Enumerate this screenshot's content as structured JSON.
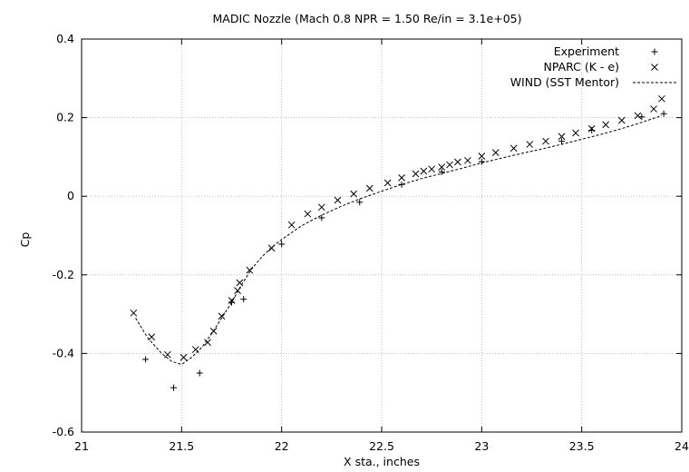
{
  "chart_data": {
    "type": "scatter",
    "title": "MADIC Nozzle (Mach 0.8   NPR = 1.50   Re/in = 3.1e+05)",
    "xlabel": "X sta., inches",
    "ylabel": "Cp",
    "xlim": [
      21,
      24
    ],
    "ylim": [
      -0.6,
      0.4
    ],
    "x_ticks": [
      21,
      21.5,
      22,
      22.5,
      23,
      23.5,
      24
    ],
    "y_ticks": [
      -0.6,
      -0.4,
      -0.2,
      0,
      0.2,
      0.4
    ],
    "x_tick_labels": [
      "21",
      "21.5",
      "22",
      "22.5",
      "23",
      "23.5",
      "24"
    ],
    "y_tick_labels": [
      "-0.6",
      "-0.4",
      "-0.2",
      "0",
      "0.2",
      "0.4"
    ],
    "grid": true,
    "legend_position": "top-right",
    "series": [
      {
        "name": "Experiment",
        "marker": "plus",
        "points": [
          [
            21.32,
            -0.415
          ],
          [
            21.46,
            -0.487
          ],
          [
            21.59,
            -0.45
          ],
          [
            21.75,
            -0.27
          ],
          [
            21.81,
            -0.262
          ],
          [
            22.0,
            -0.122
          ],
          [
            22.2,
            -0.055
          ],
          [
            22.39,
            -0.015
          ],
          [
            22.6,
            0.03
          ],
          [
            22.8,
            0.062
          ],
          [
            23.0,
            0.088
          ],
          [
            23.4,
            0.14
          ],
          [
            23.55,
            0.168
          ],
          [
            23.8,
            0.202
          ],
          [
            23.91,
            0.21
          ]
        ]
      },
      {
        "name": "NPARC (K - e)",
        "marker": "cross",
        "points": [
          [
            21.26,
            -0.297
          ],
          [
            21.35,
            -0.358
          ],
          [
            21.43,
            -0.403
          ],
          [
            21.51,
            -0.41
          ],
          [
            21.57,
            -0.39
          ],
          [
            21.63,
            -0.372
          ],
          [
            21.66,
            -0.343
          ],
          [
            21.7,
            -0.305
          ],
          [
            21.75,
            -0.265
          ],
          [
            21.78,
            -0.24
          ],
          [
            21.79,
            -0.22
          ],
          [
            21.84,
            -0.188
          ],
          [
            21.95,
            -0.132
          ],
          [
            22.05,
            -0.073
          ],
          [
            22.13,
            -0.045
          ],
          [
            22.2,
            -0.028
          ],
          [
            22.28,
            -0.01
          ],
          [
            22.36,
            0.006
          ],
          [
            22.44,
            0.02
          ],
          [
            22.53,
            0.034
          ],
          [
            22.6,
            0.047
          ],
          [
            22.67,
            0.057
          ],
          [
            22.71,
            0.064
          ],
          [
            22.75,
            0.069
          ],
          [
            22.8,
            0.074
          ],
          [
            22.84,
            0.08
          ],
          [
            22.88,
            0.087
          ],
          [
            22.93,
            0.091
          ],
          [
            23.0,
            0.102
          ],
          [
            23.07,
            0.111
          ],
          [
            23.16,
            0.122
          ],
          [
            23.24,
            0.132
          ],
          [
            23.32,
            0.14
          ],
          [
            23.4,
            0.152
          ],
          [
            23.47,
            0.161
          ],
          [
            23.55,
            0.172
          ],
          [
            23.62,
            0.182
          ],
          [
            23.7,
            0.193
          ],
          [
            23.78,
            0.205
          ],
          [
            23.86,
            0.222
          ],
          [
            23.9,
            0.248
          ]
        ]
      },
      {
        "name": "WIND (SST Mentor)",
        "marker": "line",
        "points": [
          [
            21.27,
            -0.31
          ],
          [
            21.33,
            -0.36
          ],
          [
            21.4,
            -0.4
          ],
          [
            21.45,
            -0.42
          ],
          [
            21.5,
            -0.428
          ],
          [
            21.55,
            -0.41
          ],
          [
            21.6,
            -0.385
          ],
          [
            21.65,
            -0.35
          ],
          [
            21.7,
            -0.31
          ],
          [
            21.75,
            -0.27
          ],
          [
            21.8,
            -0.225
          ],
          [
            21.85,
            -0.185
          ],
          [
            21.9,
            -0.155
          ],
          [
            21.95,
            -0.13
          ],
          [
            22.0,
            -0.11
          ],
          [
            22.1,
            -0.075
          ],
          [
            22.2,
            -0.048
          ],
          [
            22.3,
            -0.025
          ],
          [
            22.4,
            -0.005
          ],
          [
            22.5,
            0.013
          ],
          [
            22.6,
            0.03
          ],
          [
            22.7,
            0.045
          ],
          [
            22.8,
            0.058
          ],
          [
            22.9,
            0.071
          ],
          [
            23.0,
            0.085
          ],
          [
            23.1,
            0.097
          ],
          [
            23.2,
            0.109
          ],
          [
            23.3,
            0.12
          ],
          [
            23.4,
            0.132
          ],
          [
            23.5,
            0.145
          ],
          [
            23.6,
            0.158
          ],
          [
            23.7,
            0.172
          ],
          [
            23.8,
            0.188
          ],
          [
            23.9,
            0.205
          ]
        ]
      }
    ]
  }
}
